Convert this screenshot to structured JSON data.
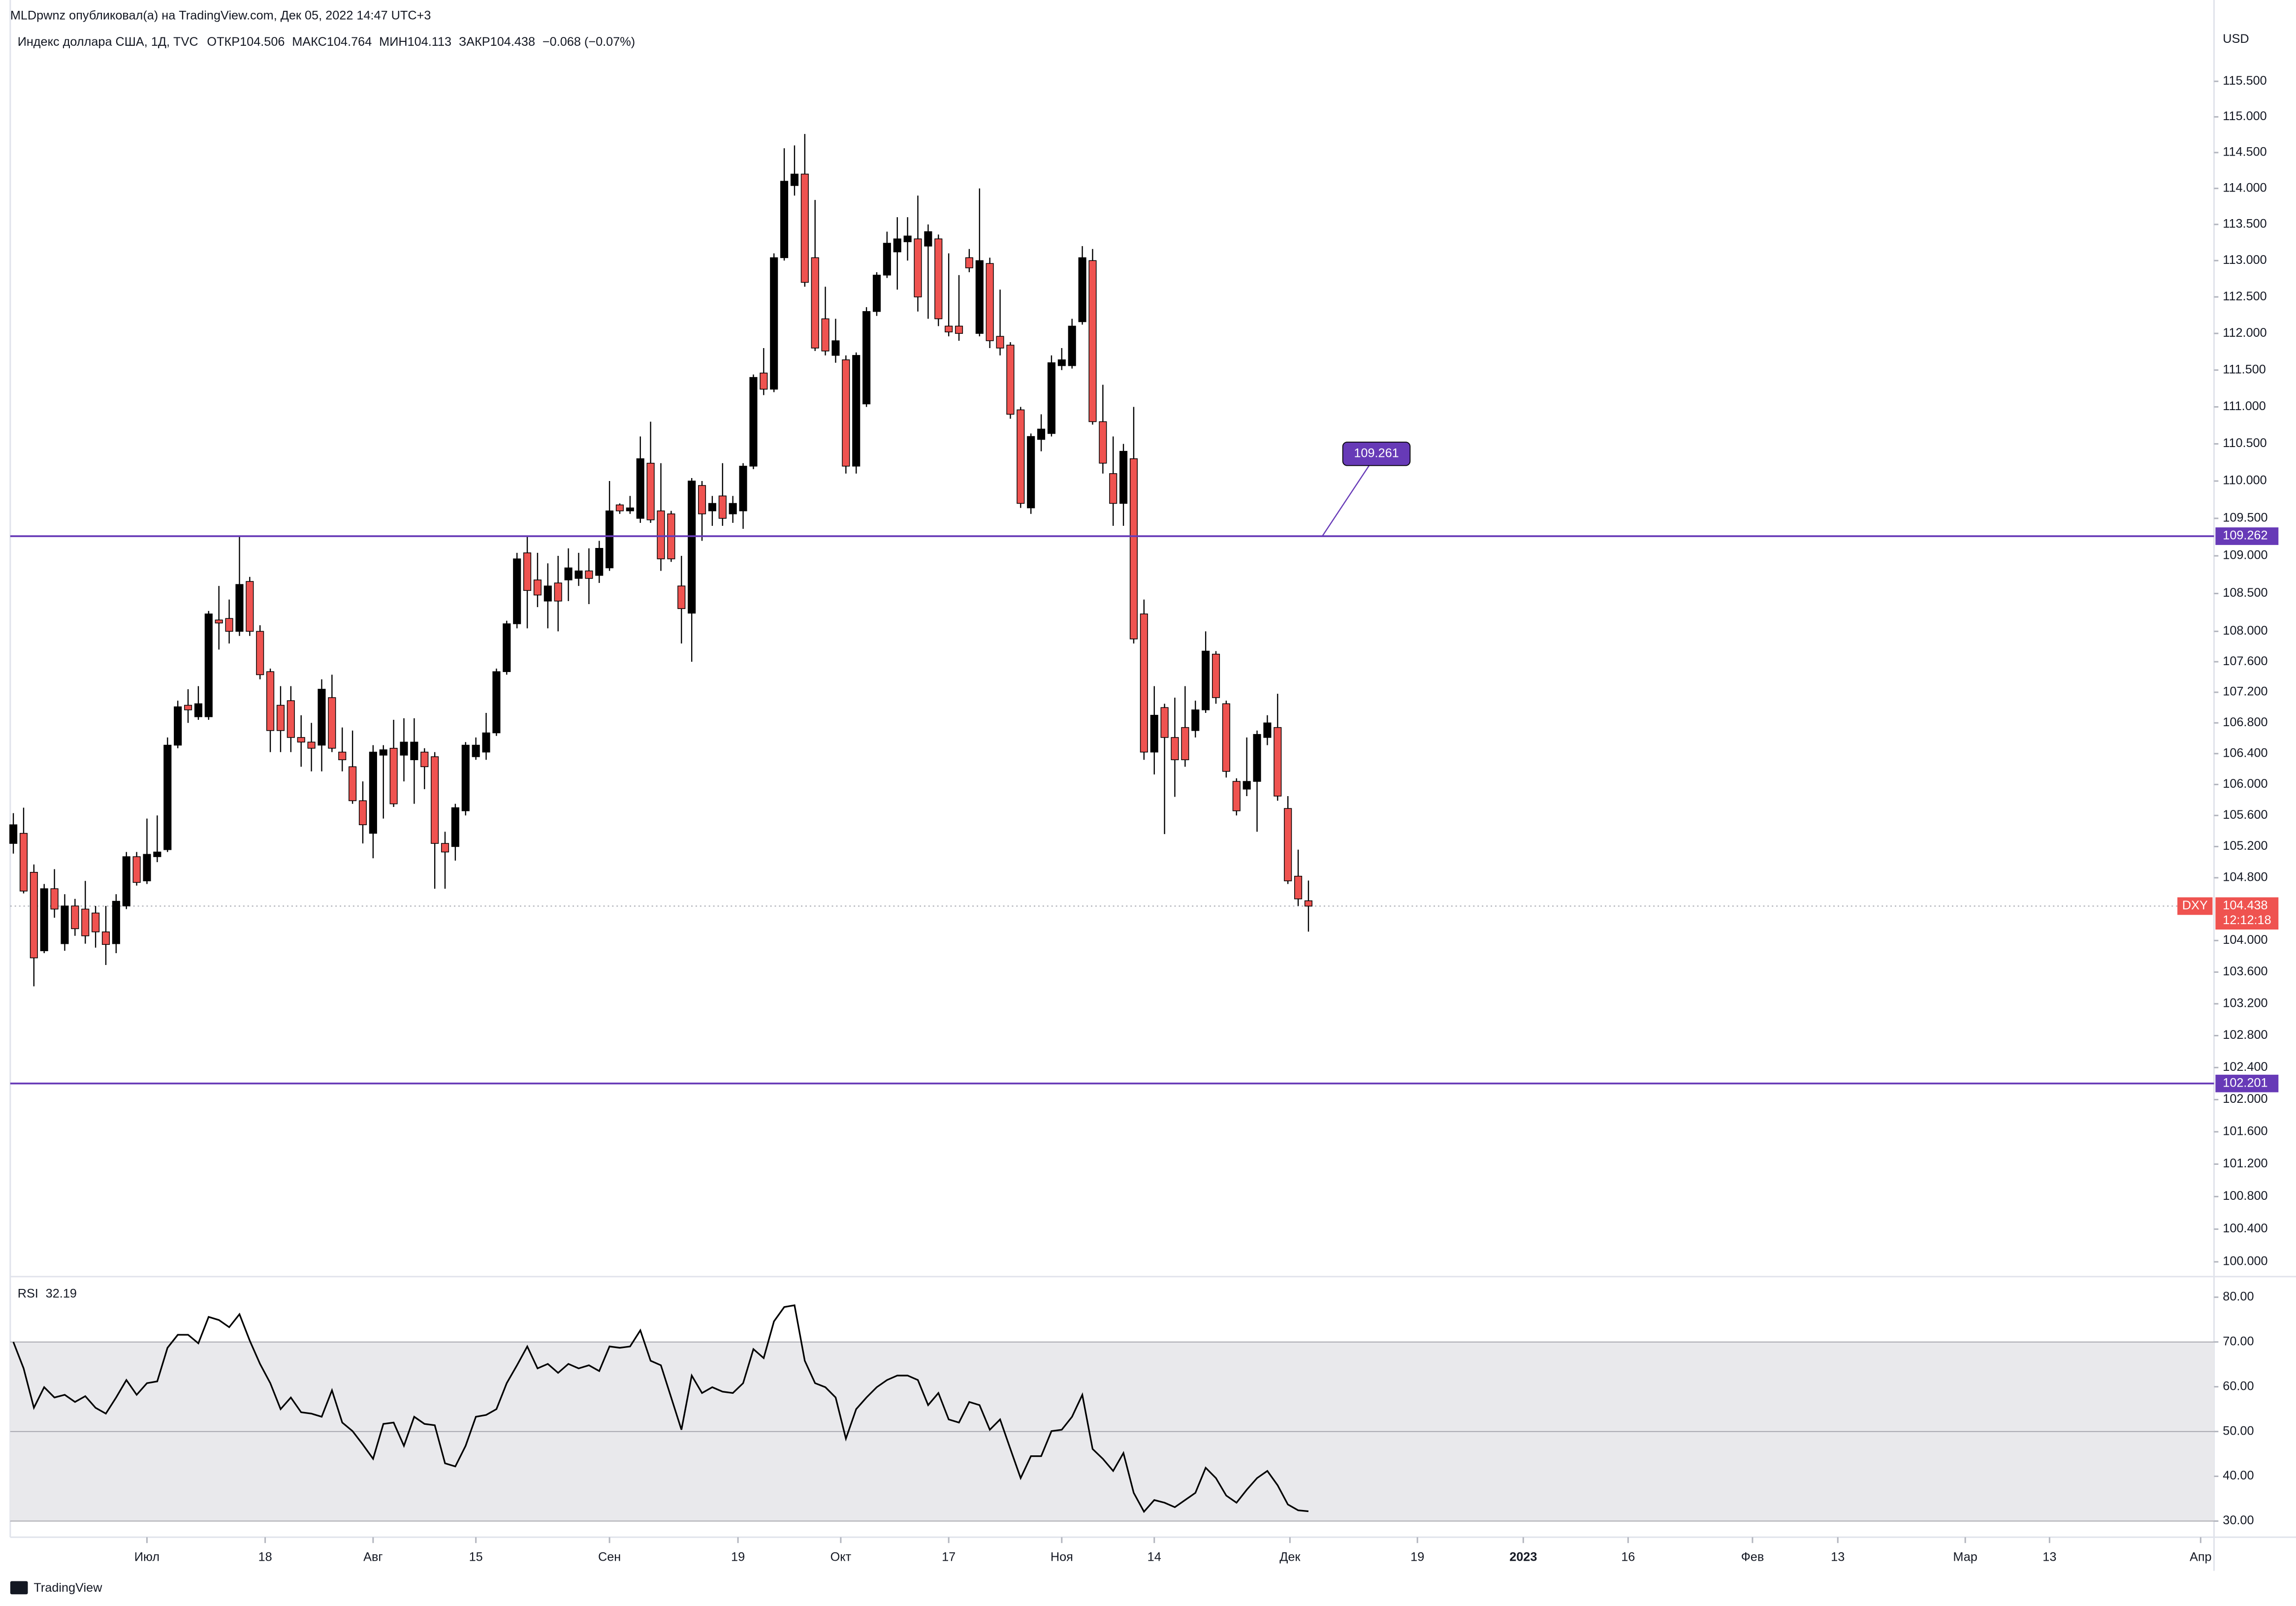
{
  "header": {
    "publisher": "MLDpwnz опубликовал(а) на TradingView.com, Дек 05, 2022 14:47 UTC+3",
    "symbol": "Индекс доллара США, 1Д, TVC",
    "labels": {
      "open": "ОТКР",
      "high": "МАКС",
      "low": "МИН",
      "close": "ЗАКР"
    },
    "change": "−0.068 (−0.07%)",
    "logo": "TradingView"
  },
  "chart_data": [
    {
      "type": "candlestick",
      "currency": "USD",
      "log": true,
      "grid": false,
      "ylim": [
        99.82,
        116.34
      ],
      "yticks": [
        {
          "value": 100.0,
          "label": "100.000"
        },
        {
          "value": 100.4,
          "label": "100.400"
        },
        {
          "value": 100.8,
          "label": "100.800"
        },
        {
          "value": 101.2,
          "label": "101.200"
        },
        {
          "value": 101.6,
          "label": "101.600"
        },
        {
          "value": 102.0,
          "label": "102.000"
        },
        {
          "value": 102.4,
          "label": "102.400"
        },
        {
          "value": 102.8,
          "label": "102.800"
        },
        {
          "value": 103.2,
          "label": "103.200"
        },
        {
          "value": 103.6,
          "label": "103.600"
        },
        {
          "value": 104.0,
          "label": "104.000"
        },
        {
          "value": 104.8,
          "label": "104.800"
        },
        {
          "value": 105.2,
          "label": "105.200"
        },
        {
          "value": 105.6,
          "label": "105.600"
        },
        {
          "value": 106.0,
          "label": "106.000"
        },
        {
          "value": 106.4,
          "label": "106.400"
        },
        {
          "value": 106.8,
          "label": "106.800"
        },
        {
          "value": 107.2,
          "label": "107.200"
        },
        {
          "value": 107.6,
          "label": "107.600"
        },
        {
          "value": 108.0,
          "label": "108.000"
        },
        {
          "value": 108.5,
          "label": "108.500"
        },
        {
          "value": 109.0,
          "label": "109.000"
        },
        {
          "value": 109.5,
          "label": "109.500"
        },
        {
          "value": 110.0,
          "label": "110.000"
        },
        {
          "value": 110.5,
          "label": "110.500"
        },
        {
          "value": 111.0,
          "label": "111.000"
        },
        {
          "value": 111.5,
          "label": "111.500"
        },
        {
          "value": 112.0,
          "label": "112.000"
        },
        {
          "value": 112.5,
          "label": "112.500"
        },
        {
          "value": 113.0,
          "label": "113.000"
        },
        {
          "value": 113.5,
          "label": "113.500"
        },
        {
          "value": 114.0,
          "label": "114.000"
        },
        {
          "value": 114.5,
          "label": "114.500"
        },
        {
          "value": 115.0,
          "label": "115.000"
        },
        {
          "value": 115.5,
          "label": "115.500"
        }
      ],
      "xlim": [
        -0.3,
        214.1
      ],
      "xticks": [
        {
          "value": 13,
          "label": "Июл"
        },
        {
          "value": 24.5,
          "label": "18"
        },
        {
          "value": 35,
          "label": "Авг"
        },
        {
          "value": 45,
          "label": "15"
        },
        {
          "value": 58,
          "label": "Сен"
        },
        {
          "value": 70.5,
          "label": "19"
        },
        {
          "value": 80.5,
          "label": "Окт"
        },
        {
          "value": 91,
          "label": "17"
        },
        {
          "value": 102,
          "label": "Ноя"
        },
        {
          "value": 111,
          "label": "14"
        },
        {
          "value": 124.2,
          "label": "Дек"
        },
        {
          "value": 136.6,
          "label": "19"
        },
        {
          "value": 146.9,
          "label": "2023"
        },
        {
          "value": 157.1,
          "label": "16"
        },
        {
          "value": 169.2,
          "label": "Фев"
        },
        {
          "value": 177.5,
          "label": "13"
        },
        {
          "value": 189.9,
          "label": "Мар"
        },
        {
          "value": 198.1,
          "label": "13"
        },
        {
          "value": 212.8,
          "label": "Апр"
        }
      ],
      "up_color": "#000000",
      "down_color": "#ef5350",
      "open": [
        105.24,
        105.37,
        104.87,
        103.87,
        104.66,
        103.96,
        104.44,
        104.4,
        104.35,
        104.11,
        103.96,
        104.44,
        105.07,
        104.76,
        105.07,
        105.16,
        106.51,
        107.03,
        106.88,
        106.88,
        108.15,
        108.17,
        108.0,
        108.66,
        108.0,
        107.47,
        107.03,
        107.09,
        106.61,
        106.55,
        106.51,
        107.13,
        106.42,
        106.23,
        105.79,
        105.37,
        106.38,
        106.47,
        106.38,
        106.32,
        106.42,
        106.36,
        105.24,
        105.2,
        105.66,
        106.36,
        106.42,
        106.67,
        107.47,
        108.1,
        109.04,
        108.68,
        108.4,
        108.64,
        108.68,
        108.7,
        108.8,
        108.74,
        108.84,
        109.68,
        109.6,
        109.5,
        110.24,
        109.6,
        109.56,
        108.6,
        108.24,
        109.94,
        109.6,
        109.8,
        109.56,
        109.6,
        110.2,
        111.46,
        111.24,
        113.04,
        114.04,
        114.2,
        113.04,
        112.2,
        111.7,
        111.64,
        110.2,
        111.04,
        112.3,
        112.8,
        113.12,
        113.26,
        113.3,
        113.2,
        113.3,
        112.1,
        112.1,
        113.04,
        112.0,
        112.96,
        111.96,
        111.84,
        110.96,
        109.64,
        110.56,
        110.64,
        111.56,
        111.56,
        112.16,
        113.0,
        110.8,
        110.1,
        109.7,
        110.3,
        108.23,
        106.42,
        107.0,
        106.61,
        106.74,
        106.7,
        106.97,
        107.7,
        107.05,
        106.04,
        105.94,
        106.04,
        106.61,
        106.74,
        105.69,
        104.82,
        104.506
      ],
      "high": [
        105.63,
        105.7,
        104.97,
        104.72,
        104.91,
        104.59,
        104.53,
        104.76,
        104.44,
        104.44,
        104.59,
        105.13,
        105.13,
        105.56,
        105.6,
        106.61,
        107.09,
        107.24,
        107.28,
        108.27,
        108.6,
        108.42,
        109.26,
        108.72,
        108.08,
        107.51,
        107.28,
        107.28,
        106.9,
        106.8,
        107.37,
        107.43,
        106.74,
        106.7,
        106.04,
        106.51,
        106.51,
        106.84,
        106.86,
        106.86,
        106.47,
        106.42,
        105.39,
        105.75,
        106.55,
        106.61,
        106.93,
        107.51,
        108.14,
        109.04,
        109.26,
        109.04,
        108.9,
        109.0,
        109.1,
        109.04,
        109.1,
        109.2,
        110.0,
        109.7,
        109.8,
        110.6,
        110.8,
        110.24,
        109.6,
        109.0,
        110.04,
        110.0,
        109.8,
        110.24,
        109.8,
        110.24,
        111.44,
        111.8,
        113.1,
        114.56,
        114.6,
        114.76,
        113.84,
        112.64,
        112.2,
        111.7,
        111.74,
        112.36,
        112.84,
        113.4,
        113.6,
        113.6,
        113.9,
        113.5,
        113.36,
        113.1,
        112.8,
        113.16,
        114.0,
        113.04,
        112.6,
        111.88,
        111.0,
        110.64,
        110.9,
        111.7,
        111.8,
        112.2,
        113.2,
        113.16,
        111.3,
        110.6,
        110.5,
        111.0,
        108.42,
        107.28,
        107.05,
        107.13,
        107.28,
        107.09,
        108.0,
        107.74,
        107.09,
        106.08,
        106.61,
        106.7,
        106.9,
        107.18,
        105.85,
        105.16,
        104.764
      ],
      "low": [
        105.11,
        104.6,
        103.42,
        103.84,
        104.29,
        103.87,
        104.06,
        103.96,
        103.91,
        103.69,
        103.84,
        104.4,
        104.7,
        104.72,
        105.0,
        105.13,
        106.47,
        106.8,
        106.84,
        106.84,
        107.76,
        107.84,
        107.94,
        107.94,
        107.37,
        106.42,
        106.42,
        106.42,
        106.23,
        106.17,
        106.17,
        106.42,
        106.17,
        105.75,
        105.24,
        105.05,
        105.56,
        105.71,
        106.04,
        105.75,
        105.94,
        104.66,
        104.66,
        105.02,
        105.6,
        106.32,
        106.32,
        106.63,
        107.43,
        108.04,
        108.04,
        108.32,
        108.04,
        108.0,
        108.4,
        108.6,
        108.36,
        108.64,
        108.8,
        109.56,
        109.56,
        109.44,
        109.44,
        108.8,
        108.92,
        107.84,
        107.6,
        109.2,
        109.4,
        109.4,
        109.44,
        109.36,
        110.16,
        111.16,
        111.2,
        113.0,
        113.9,
        112.64,
        111.76,
        111.7,
        111.6,
        110.1,
        110.1,
        111.0,
        112.24,
        112.76,
        112.6,
        113.0,
        112.3,
        112.2,
        112.1,
        111.96,
        111.9,
        112.84,
        111.96,
        111.8,
        111.7,
        110.84,
        109.64,
        109.56,
        110.4,
        110.6,
        111.5,
        111.52,
        112.12,
        110.76,
        110.1,
        109.4,
        109.4,
        107.84,
        106.32,
        106.13,
        105.36,
        105.84,
        106.23,
        106.61,
        106.93,
        107.05,
        106.09,
        105.6,
        105.85,
        105.39,
        106.51,
        105.79,
        104.72,
        104.44,
        104.113
      ],
      "close": [
        105.48,
        104.63,
        103.78,
        104.66,
        104.4,
        104.44,
        104.15,
        104.06,
        104.11,
        103.95,
        104.5,
        105.07,
        104.74,
        105.1,
        105.13,
        106.51,
        107.01,
        106.97,
        107.05,
        108.23,
        108.11,
        108.0,
        108.62,
        108.0,
        107.43,
        106.7,
        106.7,
        106.61,
        106.55,
        106.47,
        107.24,
        106.47,
        106.32,
        105.79,
        105.48,
        106.42,
        106.45,
        105.75,
        106.55,
        106.55,
        106.23,
        105.24,
        105.13,
        105.7,
        106.51,
        106.51,
        106.67,
        107.47,
        108.1,
        108.96,
        108.54,
        108.48,
        108.6,
        108.4,
        108.84,
        108.8,
        108.7,
        109.1,
        109.6,
        109.6,
        109.64,
        110.3,
        109.48,
        108.96,
        108.96,
        108.3,
        110.0,
        109.56,
        109.7,
        109.5,
        109.7,
        110.2,
        111.4,
        111.24,
        113.04,
        114.1,
        114.2,
        112.7,
        111.8,
        111.76,
        111.9,
        110.2,
        111.7,
        112.3,
        112.8,
        113.24,
        113.3,
        113.34,
        112.5,
        113.4,
        112.2,
        112.02,
        112.0,
        112.9,
        113.0,
        111.9,
        111.8,
        110.9,
        109.7,
        110.6,
        110.7,
        111.6,
        111.64,
        112.1,
        113.04,
        110.8,
        110.24,
        109.7,
        110.4,
        107.9,
        106.42,
        106.9,
        106.61,
        106.32,
        106.32,
        106.97,
        107.74,
        107.13,
        106.17,
        105.66,
        106.04,
        106.65,
        106.8,
        105.85,
        104.76,
        104.53,
        104.438
      ],
      "hlines": [
        {
          "value": 109.262,
          "color": "#673ab7"
        },
        {
          "value": 102.201,
          "color": "#673ab7"
        }
      ],
      "annotation": 109.261,
      "last_price": {
        "symbol": "DXY",
        "countdown": "12:12:18",
        "color": "#ef5350"
      }
    },
    {
      "type": "line",
      "name": "RSI",
      "color": "#000000",
      "values": [
        70.0,
        64.1,
        55.3,
        59.9,
        57.6,
        58.2,
        56.6,
        57.9,
        55.3,
        54.0,
        57.6,
        61.5,
        58.2,
        60.8,
        61.2,
        68.7,
        71.6,
        71.6,
        69.7,
        75.6,
        74.9,
        73.3,
        76.2,
        70.3,
        65.1,
        60.8,
        55.0,
        57.6,
        54.3,
        54.0,
        53.3,
        59.2,
        52.0,
        50.1,
        47.1,
        43.9,
        51.7,
        52.0,
        46.8,
        53.3,
        51.7,
        51.4,
        42.9,
        42.2,
        46.8,
        53.3,
        53.7,
        55.0,
        60.8,
        64.8,
        69.0,
        64.1,
        65.1,
        63.1,
        65.1,
        64.1,
        64.8,
        63.5,
        69.0,
        68.7,
        69.0,
        72.6,
        65.8,
        64.8,
        57.6,
        50.4,
        62.5,
        58.6,
        59.9,
        58.9,
        58.6,
        60.8,
        68.4,
        66.4,
        74.6,
        77.8,
        78.2,
        65.8,
        60.8,
        59.9,
        57.6,
        48.4,
        55.0,
        57.6,
        59.9,
        61.5,
        62.5,
        62.5,
        61.5,
        55.9,
        58.6,
        52.7,
        52.0,
        56.6,
        55.9,
        50.4,
        52.7,
        46.1,
        39.6,
        44.5,
        44.5,
        50.1,
        50.4,
        53.3,
        58.2,
        46.1,
        43.9,
        41.2,
        45.2,
        36.3,
        32.1,
        34.7,
        34.1,
        33.1,
        34.7,
        36.3,
        41.9,
        39.6,
        35.7,
        34.1,
        37.0,
        39.6,
        41.2,
        38.0,
        33.7,
        32.4,
        32.19
      ],
      "ylim": [
        26.4,
        84.6
      ],
      "yticks": [
        {
          "value": 30,
          "label": "30.00"
        },
        {
          "value": 40,
          "label": "40.00"
        },
        {
          "value": 50,
          "label": "50.00"
        },
        {
          "value": 60,
          "label": "60.00"
        },
        {
          "value": 70,
          "label": "70.00"
        },
        {
          "value": 80,
          "label": "80.00"
        }
      ],
      "band": [
        30,
        70
      ],
      "midline": 50,
      "band_color": "#e9e9ec"
    }
  ]
}
